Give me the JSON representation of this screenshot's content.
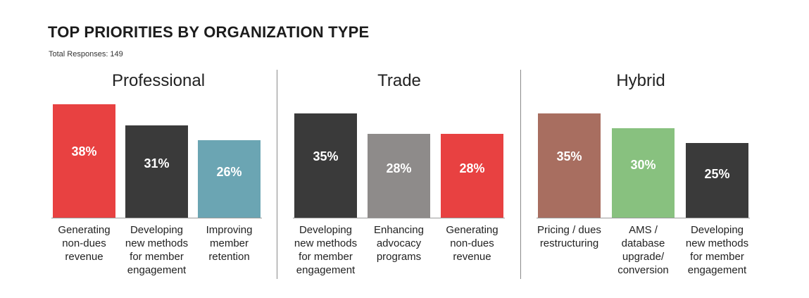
{
  "chart_data": {
    "type": "bar",
    "title": "TOP PRIORITIES BY ORGANIZATION TYPE",
    "subtitle": "Total Responses: 149",
    "ylim": [
      0,
      40
    ],
    "groups": [
      {
        "name": "Professional",
        "bars": [
          {
            "label": "Generating\nnon-dues\nrevenue",
            "value": 38,
            "display": "38%",
            "color": "#e84141"
          },
          {
            "label": "Developing\nnew methods\nfor member\nengagement",
            "value": 31,
            "display": "31%",
            "color": "#3a3a3a"
          },
          {
            "label": "Improving\nmember\nretention",
            "value": 26,
            "display": "26%",
            "color": "#6ba5b3"
          }
        ]
      },
      {
        "name": "Trade",
        "bars": [
          {
            "label": "Developing\nnew methods\nfor member\nengagement",
            "value": 35,
            "display": "35%",
            "color": "#3a3a3a"
          },
          {
            "label": "Enhancing\nadvocacy\nprograms",
            "value": 28,
            "display": "28%",
            "color": "#8e8b8a"
          },
          {
            "label": "Generating\nnon-dues\nrevenue",
            "value": 28,
            "display": "28%",
            "color": "#e84141"
          }
        ]
      },
      {
        "name": "Hybrid",
        "bars": [
          {
            "label": "Pricing / dues\nrestructuring",
            "value": 35,
            "display": "35%",
            "color": "#a86e60"
          },
          {
            "label": "AMS /\ndatabase\nupgrade/\nconversion",
            "value": 30,
            "display": "30%",
            "color": "#88c17f"
          },
          {
            "label": "Developing\nnew methods\nfor member\nengagement",
            "value": 25,
            "display": "25%",
            "color": "#3a3a3a"
          }
        ]
      }
    ]
  }
}
